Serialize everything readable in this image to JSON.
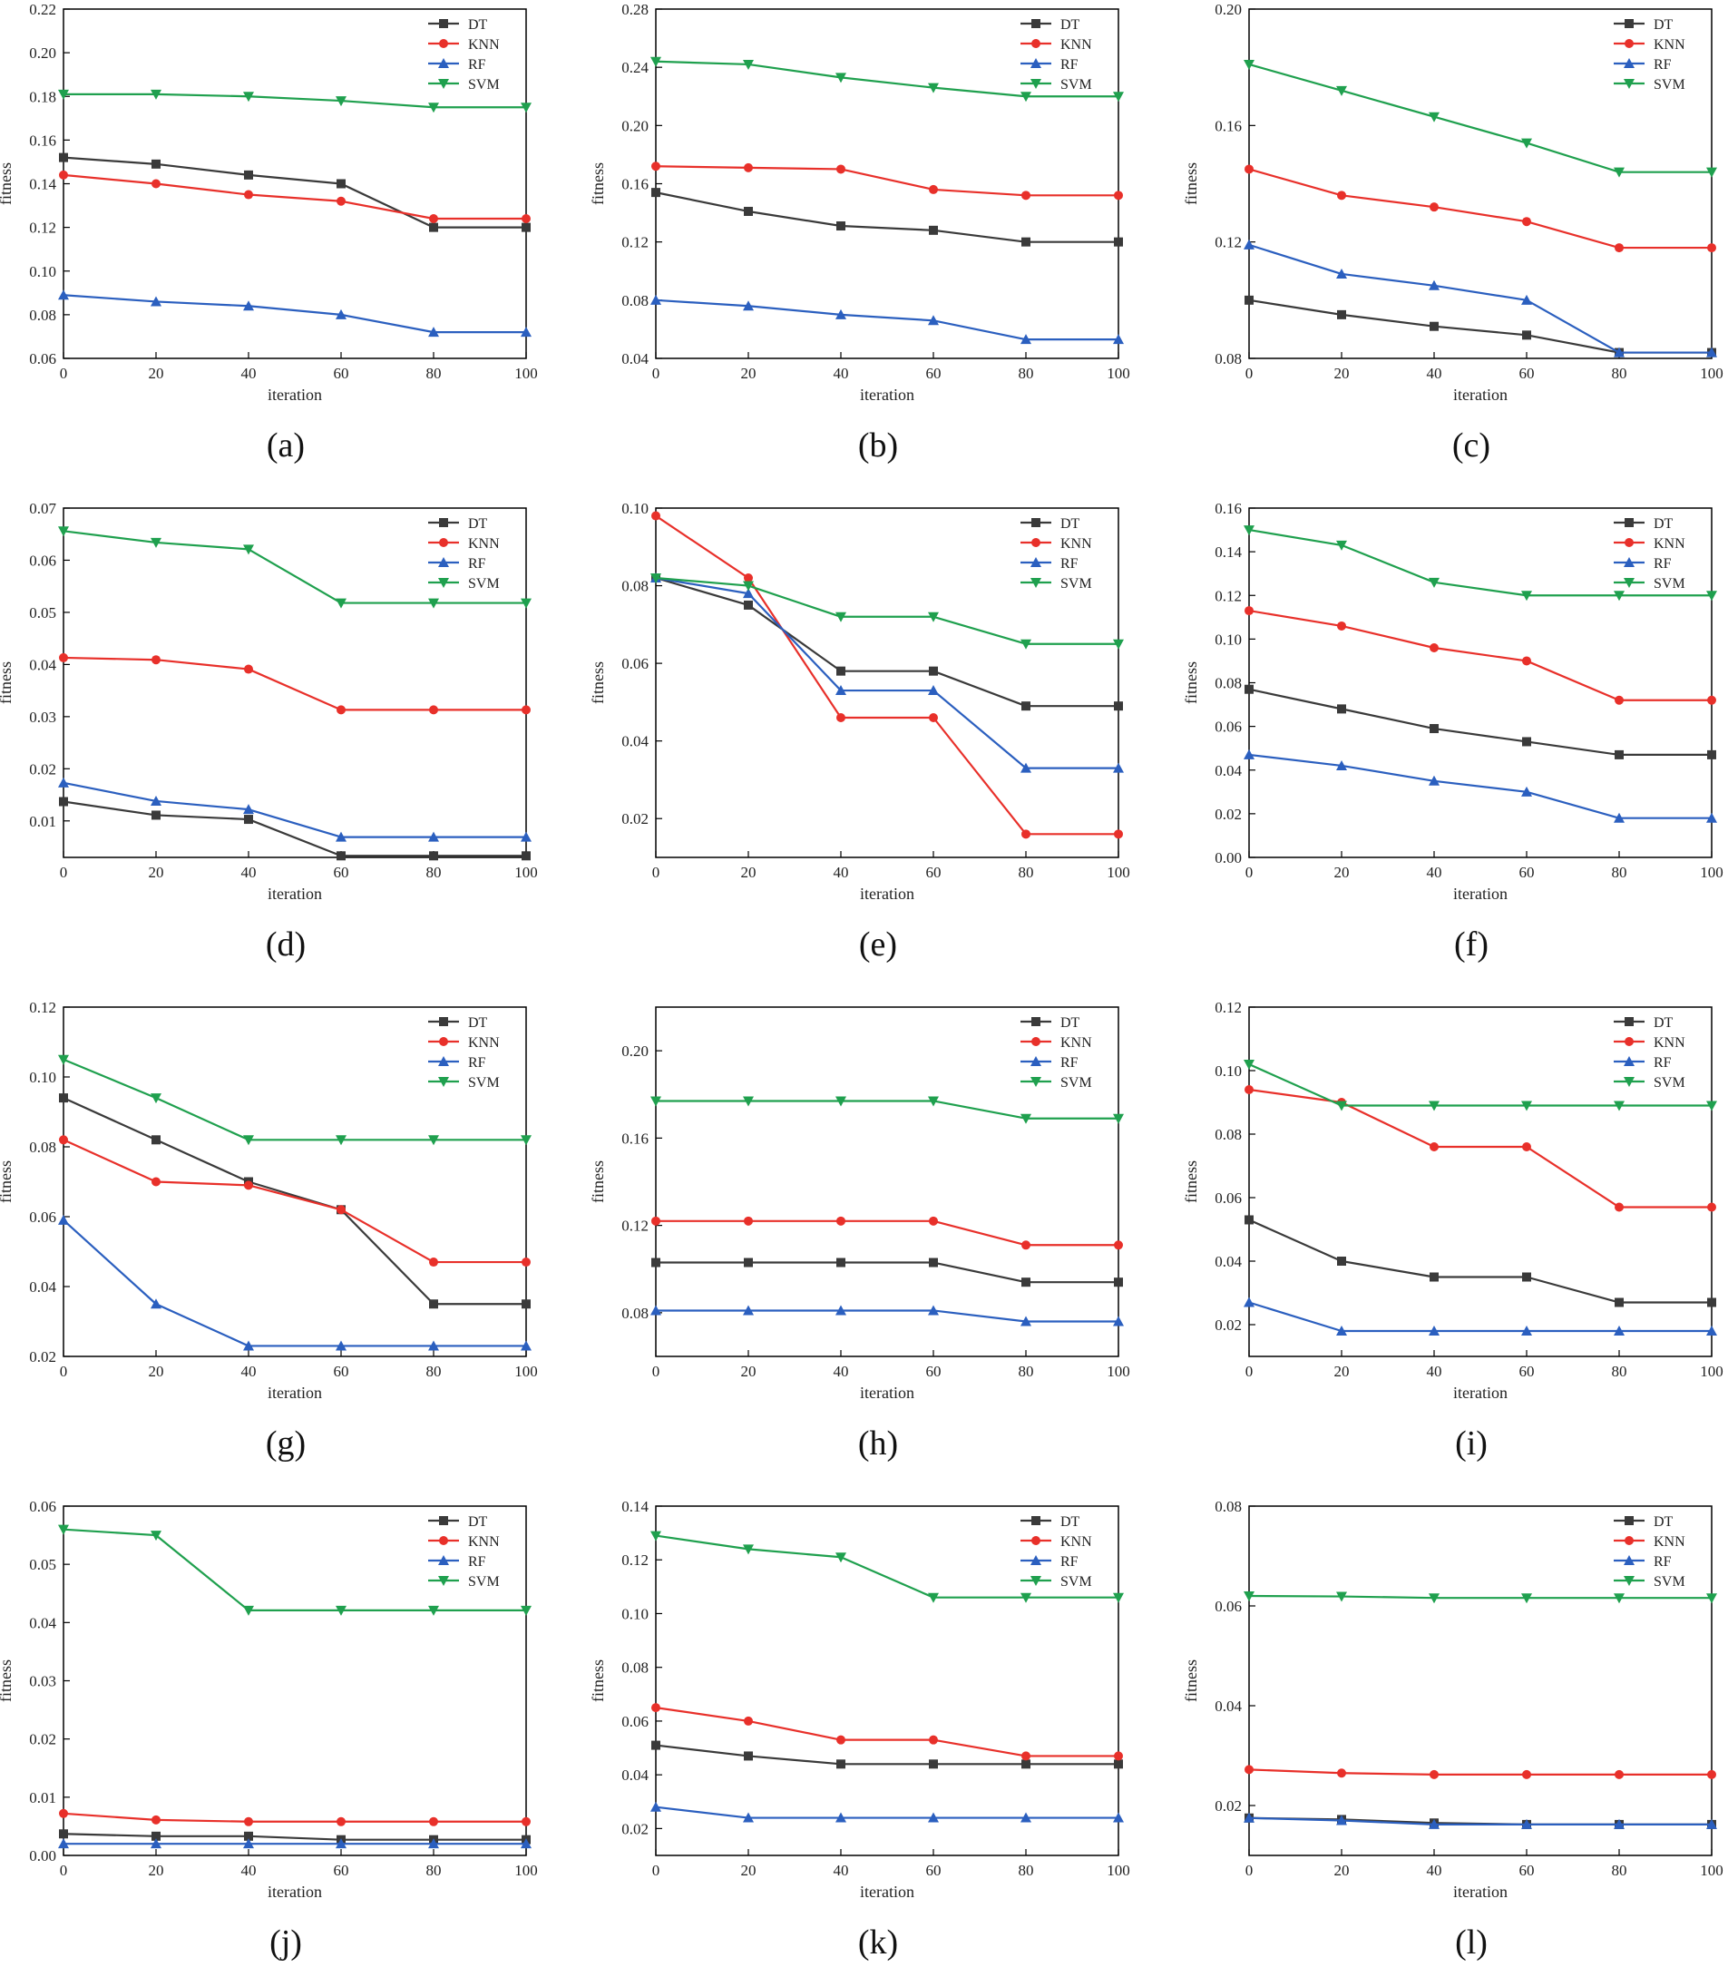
{
  "series_names": [
    "DT",
    "KNN",
    "RF",
    "SVM"
  ],
  "colors": {
    "DT": "#3a3a3a",
    "KNN": "#e8302a",
    "RF": "#2b5fbf",
    "SVM": "#1fa04e"
  },
  "markers": {
    "DT": "square",
    "KNN": "circle",
    "RF": "triangle-up",
    "SVM": "triangle-down"
  },
  "chart_data": [
    {
      "type": "line",
      "caption": "(a)",
      "xlabel": "iteration",
      "ylabel": "fitness",
      "x": [
        0,
        20,
        40,
        60,
        80,
        100
      ],
      "xlim": [
        0,
        100
      ],
      "ylim": [
        0.06,
        0.22
      ],
      "yticks": [
        "0.06",
        "0.08",
        "0.10",
        "0.12",
        "0.14",
        "0.16",
        "0.18",
        "0.20",
        "0.22"
      ],
      "series": [
        {
          "name": "DT",
          "values": [
            0.152,
            0.149,
            0.144,
            0.14,
            0.12,
            0.12
          ]
        },
        {
          "name": "KNN",
          "values": [
            0.144,
            0.14,
            0.135,
            0.132,
            0.124,
            0.124
          ]
        },
        {
          "name": "RF",
          "values": [
            0.089,
            0.086,
            0.084,
            0.08,
            0.072,
            0.072
          ]
        },
        {
          "name": "SVM",
          "values": [
            0.181,
            0.181,
            0.18,
            0.178,
            0.175,
            0.175
          ]
        }
      ]
    },
    {
      "type": "line",
      "caption": "(b)",
      "xlabel": "iteration",
      "ylabel": "fitness",
      "x": [
        0,
        20,
        40,
        60,
        80,
        100
      ],
      "xlim": [
        0,
        100
      ],
      "ylim": [
        0.04,
        0.28
      ],
      "yticks": [
        "0.04",
        "0.08",
        "0.12",
        "0.16",
        "0.20",
        "0.24",
        "0.28"
      ],
      "series": [
        {
          "name": "DT",
          "values": [
            0.154,
            0.141,
            0.131,
            0.128,
            0.12,
            0.12
          ]
        },
        {
          "name": "KNN",
          "values": [
            0.172,
            0.171,
            0.17,
            0.156,
            0.152,
            0.152
          ]
        },
        {
          "name": "RF",
          "values": [
            0.08,
            0.076,
            0.07,
            0.066,
            0.053,
            0.053
          ]
        },
        {
          "name": "SVM",
          "values": [
            0.244,
            0.242,
            0.233,
            0.226,
            0.22,
            0.22
          ]
        }
      ]
    },
    {
      "type": "line",
      "caption": "(c)",
      "xlabel": "iteration",
      "ylabel": "fitness",
      "x": [
        0,
        20,
        40,
        60,
        80,
        100
      ],
      "xlim": [
        0,
        100
      ],
      "ylim": [
        0.08,
        0.2
      ],
      "yticks": [
        "0.08",
        "0.12",
        "0.16",
        "0.20"
      ],
      "series": [
        {
          "name": "DT",
          "values": [
            0.1,
            0.095,
            0.091,
            0.088,
            0.082,
            0.082
          ]
        },
        {
          "name": "KNN",
          "values": [
            0.145,
            0.136,
            0.132,
            0.127,
            0.118,
            0.118
          ]
        },
        {
          "name": "RF",
          "values": [
            0.119,
            0.109,
            0.105,
            0.1,
            0.082,
            0.082
          ]
        },
        {
          "name": "SVM",
          "values": [
            0.181,
            0.172,
            0.163,
            0.154,
            0.144,
            0.144
          ]
        }
      ]
    },
    {
      "type": "line",
      "caption": "(d)",
      "xlabel": "iteration",
      "ylabel": "fitness",
      "x": [
        0,
        20,
        40,
        60,
        80,
        100
      ],
      "xlim": [
        0,
        100
      ],
      "ylim": [
        0.003,
        0.07
      ],
      "yticks": [
        "0.01",
        "0.02",
        "0.03",
        "0.04",
        "0.05",
        "0.06",
        "0.07"
      ],
      "series": [
        {
          "name": "DT",
          "values": [
            0.0137,
            0.0111,
            0.0103,
            0.0033,
            0.0033,
            0.0033
          ]
        },
        {
          "name": "KNN",
          "values": [
            0.0413,
            0.0409,
            0.0391,
            0.0313,
            0.0313,
            0.0313
          ]
        },
        {
          "name": "RF",
          "values": [
            0.0173,
            0.0138,
            0.0122,
            0.0069,
            0.0069,
            0.0069
          ]
        },
        {
          "name": "SVM",
          "values": [
            0.0656,
            0.0634,
            0.0621,
            0.0518,
            0.0518,
            0.0518
          ]
        }
      ]
    },
    {
      "type": "line",
      "caption": "(e)",
      "xlabel": "iteration",
      "ylabel": "fitness",
      "x": [
        0,
        20,
        40,
        60,
        80,
        100
      ],
      "xlim": [
        0,
        100
      ],
      "ylim": [
        0.01,
        0.1
      ],
      "yticks": [
        "0.02",
        "0.04",
        "0.06",
        "0.08",
        "0.10"
      ],
      "series": [
        {
          "name": "DT",
          "values": [
            0.082,
            0.075,
            0.058,
            0.058,
            0.049,
            0.049
          ]
        },
        {
          "name": "KNN",
          "values": [
            0.098,
            0.082,
            0.046,
            0.046,
            0.016,
            0.016
          ]
        },
        {
          "name": "RF",
          "values": [
            0.082,
            0.078,
            0.053,
            0.053,
            0.033,
            0.033
          ]
        },
        {
          "name": "SVM",
          "values": [
            0.082,
            0.08,
            0.072,
            0.072,
            0.065,
            0.065
          ]
        }
      ]
    },
    {
      "type": "line",
      "caption": "(f)",
      "xlabel": "iteration",
      "ylabel": "fitness",
      "x": [
        0,
        20,
        40,
        60,
        80,
        100
      ],
      "xlim": [
        0,
        100
      ],
      "ylim": [
        0.0,
        0.16
      ],
      "yticks": [
        "0.00",
        "0.02",
        "0.04",
        "0.06",
        "0.08",
        "0.10",
        "0.12",
        "0.14",
        "0.16"
      ],
      "series": [
        {
          "name": "DT",
          "values": [
            0.077,
            0.068,
            0.059,
            0.053,
            0.047,
            0.047
          ]
        },
        {
          "name": "KNN",
          "values": [
            0.113,
            0.106,
            0.096,
            0.09,
            0.072,
            0.072
          ]
        },
        {
          "name": "RF",
          "values": [
            0.047,
            0.042,
            0.035,
            0.03,
            0.018,
            0.018
          ]
        },
        {
          "name": "SVM",
          "values": [
            0.15,
            0.143,
            0.126,
            0.12,
            0.12,
            0.12
          ]
        }
      ]
    },
    {
      "type": "line",
      "caption": "(g)",
      "xlabel": "iteration",
      "ylabel": "fitness",
      "x": [
        0,
        20,
        40,
        60,
        80,
        100
      ],
      "xlim": [
        0,
        100
      ],
      "ylim": [
        0.02,
        0.12
      ],
      "yticks": [
        "0.02",
        "0.04",
        "0.06",
        "0.08",
        "0.10",
        "0.12"
      ],
      "series": [
        {
          "name": "DT",
          "values": [
            0.094,
            0.082,
            0.07,
            0.062,
            0.035,
            0.035
          ]
        },
        {
          "name": "KNN",
          "values": [
            0.082,
            0.07,
            0.069,
            0.062,
            0.047,
            0.047
          ]
        },
        {
          "name": "RF",
          "values": [
            0.059,
            0.035,
            0.023,
            0.023,
            0.023,
            0.023
          ]
        },
        {
          "name": "SVM",
          "values": [
            0.105,
            0.094,
            0.082,
            0.082,
            0.082,
            0.082
          ]
        }
      ]
    },
    {
      "type": "line",
      "caption": "(h)",
      "xlabel": "iteration",
      "ylabel": "fitness",
      "x": [
        0,
        20,
        40,
        60,
        80,
        100
      ],
      "xlim": [
        0,
        100
      ],
      "ylim": [
        0.06,
        0.22
      ],
      "yticks": [
        "0.08",
        "0.12",
        "0.16",
        "0.20"
      ],
      "series": [
        {
          "name": "DT",
          "values": [
            0.103,
            0.103,
            0.103,
            0.103,
            0.094,
            0.094
          ]
        },
        {
          "name": "KNN",
          "values": [
            0.122,
            0.122,
            0.122,
            0.122,
            0.111,
            0.111
          ]
        },
        {
          "name": "RF",
          "values": [
            0.081,
            0.081,
            0.081,
            0.081,
            0.076,
            0.076
          ]
        },
        {
          "name": "SVM",
          "values": [
            0.177,
            0.177,
            0.177,
            0.177,
            0.169,
            0.169
          ]
        }
      ]
    },
    {
      "type": "line",
      "caption": "(i)",
      "xlabel": "iteration",
      "ylabel": "fitness",
      "x": [
        0,
        20,
        40,
        60,
        80,
        100
      ],
      "xlim": [
        0,
        100
      ],
      "ylim": [
        0.01,
        0.12
      ],
      "yticks": [
        "0.02",
        "0.04",
        "0.06",
        "0.08",
        "0.10",
        "0.12"
      ],
      "series": [
        {
          "name": "DT",
          "values": [
            0.053,
            0.04,
            0.035,
            0.035,
            0.027,
            0.027
          ]
        },
        {
          "name": "KNN",
          "values": [
            0.094,
            0.09,
            0.076,
            0.076,
            0.057,
            0.057
          ]
        },
        {
          "name": "RF",
          "values": [
            0.027,
            0.018,
            0.018,
            0.018,
            0.018,
            0.018
          ]
        },
        {
          "name": "SVM",
          "values": [
            0.102,
            0.089,
            0.089,
            0.089,
            0.089,
            0.089
          ]
        }
      ]
    },
    {
      "type": "line",
      "caption": "(j)",
      "xlabel": "iteration",
      "ylabel": "fitness",
      "x": [
        0,
        20,
        40,
        60,
        80,
        100
      ],
      "xlim": [
        0,
        100
      ],
      "ylim": [
        0.0,
        0.06
      ],
      "yticks": [
        "0.00",
        "0.01",
        "0.02",
        "0.03",
        "0.04",
        "0.05",
        "0.06"
      ],
      "series": [
        {
          "name": "DT",
          "values": [
            0.0037,
            0.0033,
            0.0033,
            0.0027,
            0.0027,
            0.0027
          ]
        },
        {
          "name": "KNN",
          "values": [
            0.0072,
            0.0061,
            0.0058,
            0.0058,
            0.0058,
            0.0058
          ]
        },
        {
          "name": "RF",
          "values": [
            0.002,
            0.002,
            0.002,
            0.002,
            0.002,
            0.002
          ]
        },
        {
          "name": "SVM",
          "values": [
            0.056,
            0.055,
            0.0421,
            0.0421,
            0.0421,
            0.0421
          ]
        }
      ]
    },
    {
      "type": "line",
      "caption": "(k)",
      "xlabel": "iteration",
      "ylabel": "fitness",
      "x": [
        0,
        20,
        40,
        60,
        80,
        100
      ],
      "xlim": [
        0,
        100
      ],
      "ylim": [
        0.01,
        0.14
      ],
      "yticks": [
        "0.02",
        "0.04",
        "0.06",
        "0.08",
        "0.10",
        "0.12",
        "0.14"
      ],
      "series": [
        {
          "name": "DT",
          "values": [
            0.051,
            0.047,
            0.044,
            0.044,
            0.044,
            0.044
          ]
        },
        {
          "name": "KNN",
          "values": [
            0.065,
            0.06,
            0.053,
            0.053,
            0.047,
            0.047
          ]
        },
        {
          "name": "RF",
          "values": [
            0.028,
            0.024,
            0.024,
            0.024,
            0.024,
            0.024
          ]
        },
        {
          "name": "SVM",
          "values": [
            0.129,
            0.124,
            0.121,
            0.106,
            0.106,
            0.106
          ]
        }
      ]
    },
    {
      "type": "line",
      "caption": "(l)",
      "xlabel": "iteration",
      "ylabel": "fitness",
      "x": [
        0,
        20,
        40,
        60,
        80,
        100
      ],
      "xlim": [
        0,
        100
      ],
      "ylim": [
        0.01,
        0.08
      ],
      "yticks": [
        "0.02",
        "0.04",
        "0.06",
        "0.08"
      ],
      "series": [
        {
          "name": "DT",
          "values": [
            0.0175,
            0.0172,
            0.0165,
            0.0162,
            0.0162,
            0.0162
          ]
        },
        {
          "name": "KNN",
          "values": [
            0.0272,
            0.0265,
            0.0262,
            0.0262,
            0.0262,
            0.0262
          ]
        },
        {
          "name": "RF",
          "values": [
            0.0175,
            0.017,
            0.0162,
            0.0162,
            0.0162,
            0.0162
          ]
        },
        {
          "name": "SVM",
          "values": [
            0.062,
            0.0619,
            0.0616,
            0.0616,
            0.0616,
            0.0616
          ]
        }
      ]
    }
  ]
}
